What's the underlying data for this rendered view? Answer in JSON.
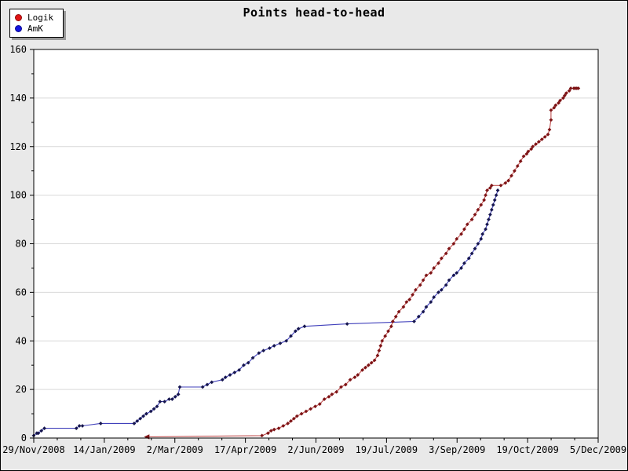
{
  "window": {
    "title": "Points head-to-head"
  },
  "legend": {
    "position": "top-left",
    "items": [
      {
        "label": "Logik",
        "color": "#e01414"
      },
      {
        "label": "AmK",
        "color": "#1414e0"
      }
    ]
  },
  "chart_data": {
    "type": "line",
    "title": "Points head-to-head",
    "xlabel": "",
    "ylabel": "",
    "grid": "horizontal-major-only",
    "legend_position": "top-left",
    "x_tick_labels": [
      "29/Nov/2008",
      "14/Jan/2009",
      "2/Mar/2009",
      "17/Apr/2009",
      "2/Jun/2009",
      "19/Jul/2009",
      "3/Sep/2009",
      "19/Oct/2009",
      "5/Dec/2009"
    ],
    "x_minor_ticks_between_majors": 2,
    "x_range_days": [
      0,
      371
    ],
    "y_ticks": [
      0,
      20,
      40,
      60,
      80,
      100,
      120,
      140,
      160
    ],
    "y_minor_step": 10,
    "ylim": [
      0,
      160
    ],
    "series": [
      {
        "name": "Logik",
        "line_color": "#c05050",
        "marker_color": "#7d1416",
        "legend_color": "#e01414",
        "marker": "diamond",
        "first_point_marker": "left-arrow",
        "points": [
          [
            75,
            0.5
          ],
          [
            150,
            1
          ],
          [
            154,
            2
          ],
          [
            156,
            3
          ],
          [
            158,
            3.5
          ],
          [
            161,
            4
          ],
          [
            164,
            5
          ],
          [
            167,
            6
          ],
          [
            169,
            7
          ],
          [
            171,
            8
          ],
          [
            173,
            9
          ],
          [
            176,
            10
          ],
          [
            179,
            11
          ],
          [
            182,
            12
          ],
          [
            185,
            13
          ],
          [
            188,
            14
          ],
          [
            191,
            16
          ],
          [
            194,
            17
          ],
          [
            196,
            18
          ],
          [
            199,
            19
          ],
          [
            202,
            21
          ],
          [
            205,
            22
          ],
          [
            208,
            24
          ],
          [
            211,
            25
          ],
          [
            213,
            26
          ],
          [
            216,
            28
          ],
          [
            218,
            29
          ],
          [
            220,
            30
          ],
          [
            222,
            31
          ],
          [
            224,
            32
          ],
          [
            226,
            34
          ],
          [
            227,
            36
          ],
          [
            228,
            38
          ],
          [
            229,
            40
          ],
          [
            231,
            42
          ],
          [
            233,
            44
          ],
          [
            235,
            46
          ],
          [
            236,
            48
          ],
          [
            238,
            50
          ],
          [
            240,
            52
          ],
          [
            243,
            54
          ],
          [
            245,
            56
          ],
          [
            247,
            57
          ],
          [
            249,
            59
          ],
          [
            251,
            61
          ],
          [
            254,
            63
          ],
          [
            256,
            65
          ],
          [
            258,
            67
          ],
          [
            261,
            68
          ],
          [
            263,
            70
          ],
          [
            266,
            72
          ],
          [
            268,
            74
          ],
          [
            271,
            76
          ],
          [
            273,
            78
          ],
          [
            276,
            80
          ],
          [
            278,
            82
          ],
          [
            281,
            84
          ],
          [
            283,
            86
          ],
          [
            285,
            88
          ],
          [
            288,
            90
          ],
          [
            290,
            92
          ],
          [
            292,
            94
          ],
          [
            294,
            96
          ],
          [
            296,
            98
          ],
          [
            297,
            100
          ],
          [
            298,
            102
          ],
          [
            300,
            103
          ],
          [
            301,
            104
          ],
          [
            307,
            104
          ],
          [
            310,
            105
          ],
          [
            312,
            106
          ],
          [
            314,
            108
          ],
          [
            316,
            110
          ],
          [
            318,
            112
          ],
          [
            320,
            114
          ],
          [
            322,
            116
          ],
          [
            324,
            117
          ],
          [
            325,
            118
          ],
          [
            327,
            119
          ],
          [
            328,
            120
          ],
          [
            330,
            121
          ],
          [
            332,
            122
          ],
          [
            334,
            123
          ],
          [
            336,
            124
          ],
          [
            338,
            125
          ],
          [
            339,
            127
          ],
          [
            340,
            131
          ],
          [
            340,
            135
          ],
          [
            342,
            136
          ],
          [
            343,
            137
          ],
          [
            345,
            138
          ],
          [
            346,
            139
          ],
          [
            348,
            140
          ],
          [
            349,
            141
          ],
          [
            350,
            142
          ],
          [
            352,
            143
          ],
          [
            353,
            144
          ],
          [
            355,
            144
          ],
          [
            356,
            144
          ],
          [
            357,
            144
          ],
          [
            358,
            144
          ]
        ]
      },
      {
        "name": "AmK",
        "line_color": "#4040bb",
        "marker_color": "#16164e",
        "legend_color": "#1414e0",
        "marker": "diamond",
        "points": [
          [
            0,
            1
          ],
          [
            2,
            2
          ],
          [
            3,
            2
          ],
          [
            5,
            3
          ],
          [
            7,
            4
          ],
          [
            28,
            4
          ],
          [
            30,
            5
          ],
          [
            32,
            5
          ],
          [
            44,
            6
          ],
          [
            66,
            6
          ],
          [
            68,
            7
          ],
          [
            70,
            8
          ],
          [
            72,
            9
          ],
          [
            74,
            10
          ],
          [
            77,
            11
          ],
          [
            79,
            12
          ],
          [
            81,
            13
          ],
          [
            83,
            15
          ],
          [
            86,
            15
          ],
          [
            89,
            16
          ],
          [
            91,
            16
          ],
          [
            93,
            17
          ],
          [
            95,
            18
          ],
          [
            96,
            21
          ],
          [
            111,
            21
          ],
          [
            114,
            22
          ],
          [
            117,
            23
          ],
          [
            124,
            24
          ],
          [
            126,
            25
          ],
          [
            129,
            26
          ],
          [
            132,
            27
          ],
          [
            135,
            28
          ],
          [
            138,
            30
          ],
          [
            141,
            31
          ],
          [
            144,
            33
          ],
          [
            148,
            35
          ],
          [
            151,
            36
          ],
          [
            155,
            37
          ],
          [
            158,
            38
          ],
          [
            162,
            39
          ],
          [
            166,
            40
          ],
          [
            169,
            42
          ],
          [
            172,
            44
          ],
          [
            174,
            45
          ],
          [
            178,
            46
          ],
          [
            206,
            47
          ],
          [
            250,
            48
          ],
          [
            253,
            50
          ],
          [
            256,
            52
          ],
          [
            258,
            54
          ],
          [
            261,
            56
          ],
          [
            263,
            58
          ],
          [
            266,
            60
          ],
          [
            268,
            61
          ],
          [
            271,
            63
          ],
          [
            273,
            65
          ],
          [
            276,
            67
          ],
          [
            278,
            68
          ],
          [
            281,
            70
          ],
          [
            283,
            72
          ],
          [
            286,
            74
          ],
          [
            288,
            76
          ],
          [
            290,
            78
          ],
          [
            292,
            80
          ],
          [
            294,
            82
          ],
          [
            295,
            84
          ],
          [
            297,
            86
          ],
          [
            298,
            88
          ],
          [
            299,
            90
          ],
          [
            300,
            92
          ],
          [
            301,
            94
          ],
          [
            302,
            96
          ],
          [
            303,
            98
          ],
          [
            304,
            100
          ],
          [
            305,
            102
          ]
        ]
      }
    ]
  }
}
